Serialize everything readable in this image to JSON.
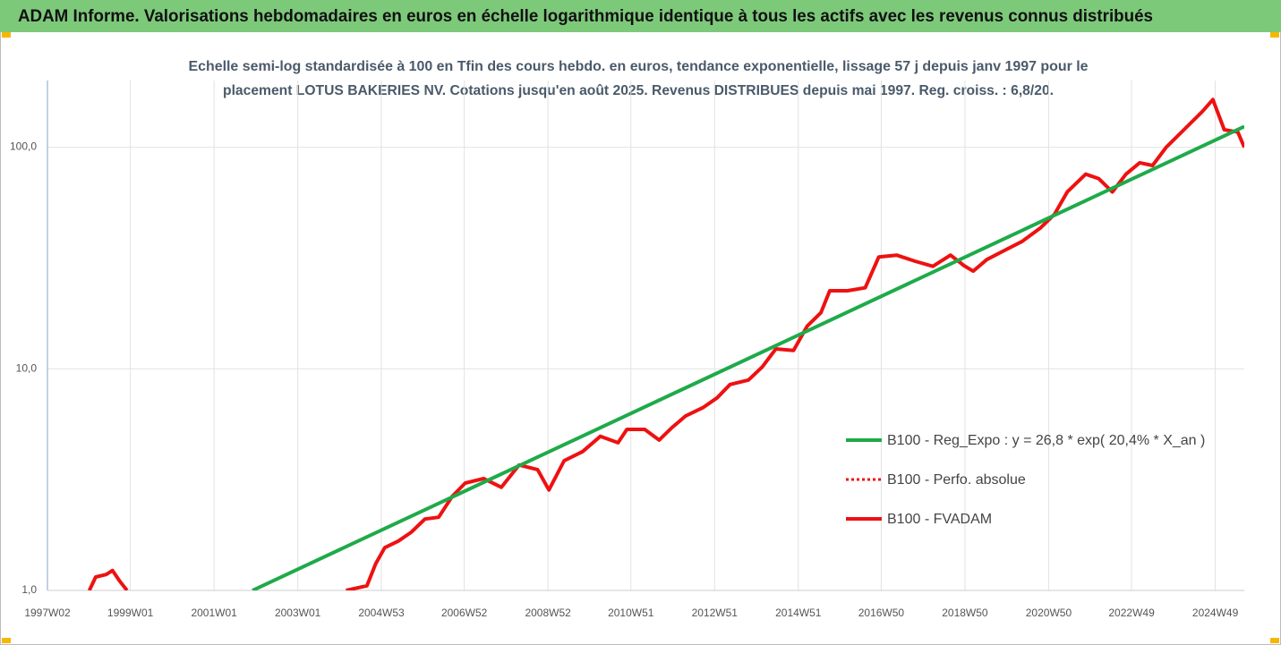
{
  "chart_data": {
    "type": "line",
    "title": "ADAM Informe. Valorisations hebdomadaires en euros en échelle logarithmique identique à tous les actifs avec les revenus connus distribués",
    "subtitle": [
      "Echelle semi-log standardisée à 100 en Tfin des cours hebdo. en euros, tendance exponentielle, lissage 57 j depuis janv 1997 pour le",
      "placement LOTUS BAKERIES NV. Cotations jusqu'en août 2025. Revenus DISTRIBUES depuis mai 1997. Reg. croiss. : 6,8/20."
    ],
    "log_scale": true,
    "grid": true,
    "legend": "right",
    "xlim": [
      "1997W02",
      "2025W33"
    ],
    "xticks": [
      "1997W02",
      "1999W01",
      "2001W01",
      "2003W01",
      "2004W53",
      "2006W52",
      "2008W52",
      "2010W51",
      "2012W51",
      "2014W51",
      "2016W50",
      "2018W50",
      "2020W50",
      "2022W49",
      "2024W49"
    ],
    "ylim": [
      1,
      200
    ],
    "yticks": [
      {
        "value": 1,
        "label": "1,0"
      },
      {
        "value": 10,
        "label": "10,0"
      },
      {
        "value": 100,
        "label": "100,0"
      }
    ],
    "x": [
      "1998W02",
      "1998W10",
      "1998W23",
      "1998W31",
      "1998W40",
      "1998W49",
      "2001W01",
      "2004W09",
      "2004W35",
      "2004W46",
      "2005W05",
      "2005W22",
      "2005W38",
      "2006W03",
      "2006W20",
      "2006W37",
      "2007W01",
      "2007W24",
      "2007W46",
      "2008W16",
      "2008W39",
      "2009W01",
      "2009W20",
      "2009W43",
      "2010W13",
      "2010W35",
      "2010W46",
      "2011W16",
      "2011W34",
      "2011W50",
      "2012W15",
      "2012W37",
      "2013W02",
      "2013W18",
      "2013W41",
      "2014W06",
      "2014W23",
      "2014W45",
      "2015W10",
      "2015W27",
      "2015W38",
      "2016W08",
      "2016W30",
      "2016W47",
      "2017W17",
      "2017W40",
      "2018W10",
      "2018W32",
      "2018W49",
      "2019W08",
      "2019W25",
      "2019W47",
      "2020W17",
      "2020W40",
      "2021W05",
      "2021W21",
      "2021W44",
      "2022W08",
      "2022W25",
      "2022W42",
      "2023W07",
      "2023W23",
      "2023W40",
      "2024W10",
      "2024W33",
      "2024W46",
      "2025W08",
      "2025W25",
      "2025W33"
    ],
    "series": [
      {
        "name": "B100 - Reg_Expo : y = 26,8 * exp( 20,4% *  X_an )",
        "color": "#1faa4a",
        "style": "solid",
        "x": [
          "2001W49",
          "2025W33"
        ],
        "values": [
          1.0,
          124
        ]
      },
      {
        "name": "B100 - Perfo. absolue",
        "color": "#ee1111",
        "style": "dotted",
        "values": [
          1.0,
          1.15,
          1.18,
          1.23,
          1.1,
          1.0,
          null,
          1.0,
          1.05,
          1.32,
          1.56,
          1.67,
          1.83,
          2.1,
          2.14,
          2.66,
          3.05,
          3.2,
          2.92,
          3.68,
          3.51,
          2.84,
          3.85,
          4.23,
          4.96,
          4.64,
          5.33,
          5.33,
          4.77,
          5.43,
          6.13,
          6.7,
          7.4,
          8.5,
          8.9,
          10.2,
          12.3,
          12.1,
          15.6,
          17.9,
          22.5,
          22.5,
          23.2,
          32,
          32.6,
          30.6,
          29.0,
          32.6,
          29.2,
          27.6,
          31.1,
          34.2,
          37.6,
          43.3,
          49.8,
          62.8,
          75.6,
          72.2,
          62.8,
          75.6,
          85.1,
          82.7,
          100,
          120,
          145,
          164,
          120,
          117,
          100
        ]
      },
      {
        "name": "B100 - FVADAM",
        "color": "#ee1111",
        "style": "solid",
        "values": [
          1.0,
          1.15,
          1.18,
          1.23,
          1.1,
          1.0,
          null,
          1.0,
          1.05,
          1.32,
          1.56,
          1.67,
          1.83,
          2.1,
          2.14,
          2.66,
          3.05,
          3.2,
          2.92,
          3.68,
          3.51,
          2.84,
          3.85,
          4.23,
          4.96,
          4.64,
          5.33,
          5.33,
          4.77,
          5.43,
          6.13,
          6.7,
          7.4,
          8.5,
          8.9,
          10.2,
          12.3,
          12.1,
          15.6,
          17.9,
          22.5,
          22.5,
          23.2,
          32,
          32.6,
          30.6,
          29.0,
          32.6,
          29.2,
          27.6,
          31.1,
          34.2,
          37.6,
          43.3,
          49.8,
          62.8,
          75.6,
          72.2,
          62.8,
          75.6,
          85.1,
          82.7,
          100,
          120,
          145,
          164,
          120,
          117,
          100
        ]
      }
    ]
  }
}
